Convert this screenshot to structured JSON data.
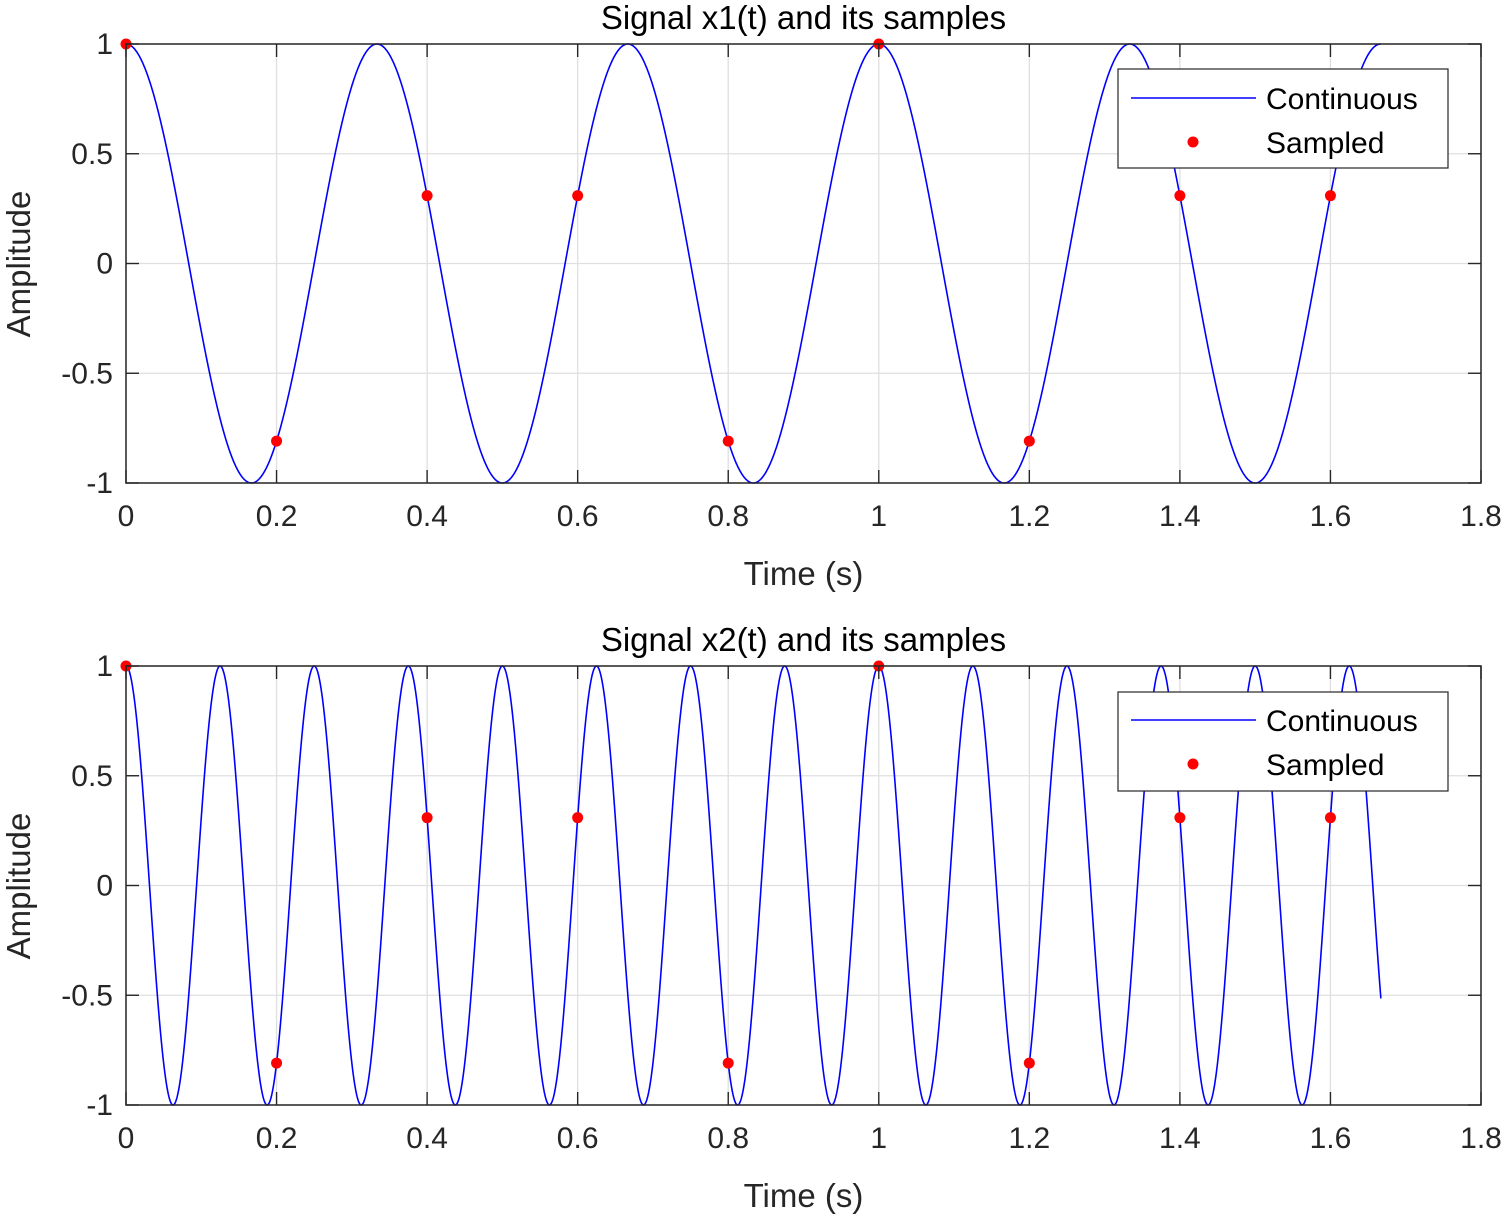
{
  "chart_data": [
    {
      "type": "line",
      "title": "Signal x1(t) and its samples",
      "xlabel": "Time (s)",
      "ylabel": "Amplitude",
      "xlim": [
        0,
        1.8
      ],
      "ylim": [
        -1,
        1
      ],
      "xticks": [
        "0",
        "0.2",
        "0.4",
        "0.6",
        "0.8",
        "1",
        "1.2",
        "1.4",
        "1.6",
        "1.8"
      ],
      "yticks": [
        "-1",
        "-0.5",
        "0",
        "0.5",
        "1"
      ],
      "grid": true,
      "legend_position": "top-right",
      "series": [
        {
          "name": "Continuous",
          "style": "line",
          "color": "#0000ff",
          "function": "cos(2*pi*3*t)",
          "frequency_hz": 3,
          "t_range": [
            0,
            1.667
          ]
        },
        {
          "name": "Sampled",
          "style": "marker",
          "color": "#ff0000",
          "x": [
            0,
            0.2,
            0.4,
            0.6,
            0.8,
            1.0,
            1.2,
            1.4,
            1.6
          ],
          "y": [
            1,
            -0.809,
            0.309,
            0.309,
            -0.809,
            1,
            -0.809,
            0.309,
            0.309
          ]
        }
      ]
    },
    {
      "type": "line",
      "title": "Signal x2(t) and its samples",
      "xlabel": "Time (s)",
      "ylabel": "Amplitude",
      "xlim": [
        0,
        1.8
      ],
      "ylim": [
        -1,
        1
      ],
      "xticks": [
        "0",
        "0.2",
        "0.4",
        "0.6",
        "0.8",
        "1",
        "1.2",
        "1.4",
        "1.6",
        "1.8"
      ],
      "yticks": [
        "-1",
        "-0.5",
        "0",
        "0.5",
        "1"
      ],
      "grid": true,
      "legend_position": "top-right",
      "series": [
        {
          "name": "Continuous",
          "style": "line",
          "color": "#0000ff",
          "function": "cos(2*pi*8*t)",
          "frequency_hz": 8,
          "t_range": [
            0,
            1.667
          ]
        },
        {
          "name": "Sampled",
          "style": "marker",
          "color": "#ff0000",
          "x": [
            0,
            0.2,
            0.4,
            0.6,
            0.8,
            1.0,
            1.2,
            1.4,
            1.6
          ],
          "y": [
            1,
            -0.809,
            0.309,
            0.309,
            -0.809,
            1,
            -0.809,
            0.309,
            0.309
          ]
        }
      ]
    }
  ]
}
